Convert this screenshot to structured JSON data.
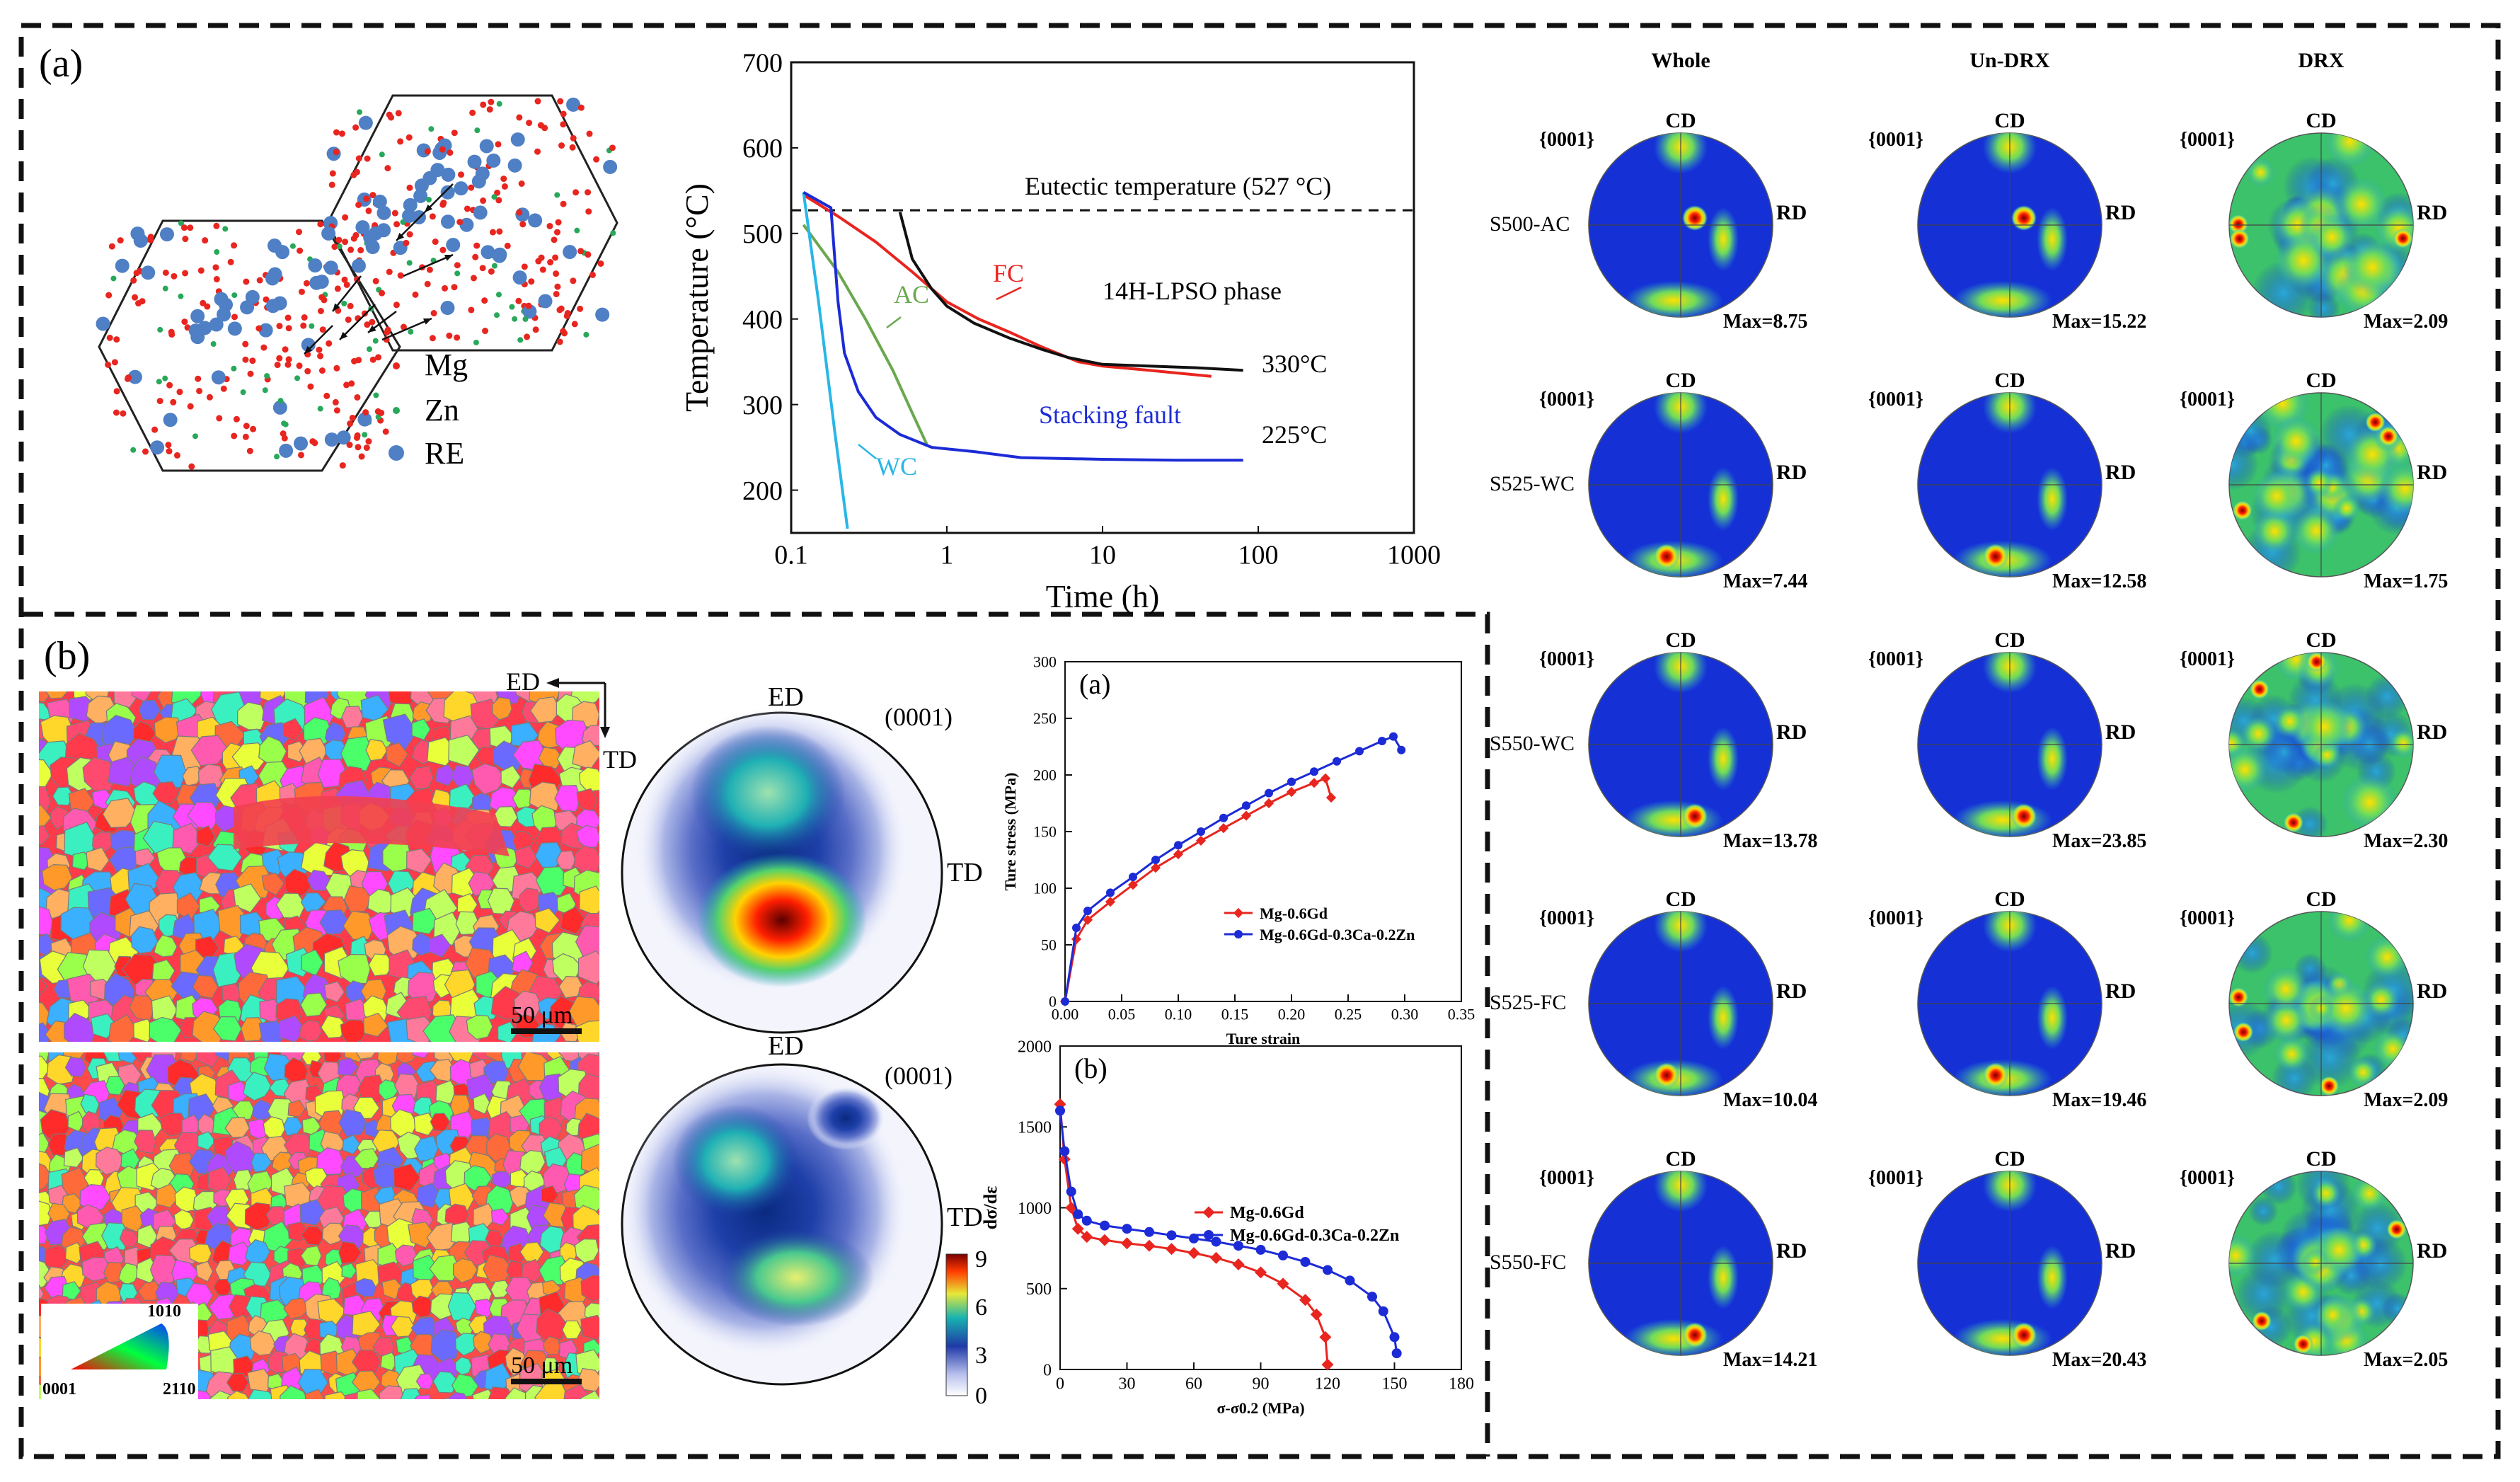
{
  "panel_a": {
    "label": "(a)",
    "legend": [
      "Mg",
      "Zn",
      "RE"
    ],
    "colors": {
      "mg": "#e8251f",
      "zn": "#27a85a",
      "re": "#4f7fc4",
      "fc": "#e8251f",
      "ac": "#6aa84f",
      "wc": "#29b6e8",
      "stack": "#1c2bd6",
      "black": "#111111"
    }
  },
  "panel_b": {
    "label": "(b)"
  },
  "chart_data": [
    {
      "type": "line",
      "title": "",
      "xlabel": "Time (h)",
      "ylabel": "Temperature (°C)",
      "xscale": "log",
      "xlim": [
        0.1,
        1000
      ],
      "ylim": [
        150,
        700
      ],
      "xticks": [
        "0.1",
        "1",
        "10",
        "100",
        "1000"
      ],
      "yticks": [
        "200",
        "300",
        "400",
        "500",
        "600",
        "700"
      ],
      "eutectic": {
        "label": "Eutectic temperature (527 °C)",
        "value": 527
      },
      "annotations": [
        "14H-LPSO phase",
        "330°C",
        "225°C"
      ],
      "series": [
        {
          "name": "FC",
          "color": "#e8251f",
          "x": [
            0.12,
            0.2,
            0.35,
            0.6,
            1.0,
            1.6,
            2.5,
            4,
            7,
            10,
            20,
            50
          ],
          "y": [
            545,
            520,
            490,
            455,
            420,
            400,
            385,
            368,
            350,
            345,
            340,
            333
          ]
        },
        {
          "name": "AC",
          "color": "#6aa84f",
          "x": [
            0.12,
            0.2,
            0.3,
            0.45,
            0.6,
            0.75
          ],
          "y": [
            510,
            455,
            400,
            340,
            290,
            252
          ]
        },
        {
          "name": "WC",
          "color": "#29b6e8",
          "x": [
            0.12,
            0.15,
            0.19,
            0.23
          ],
          "y": [
            548,
            420,
            270,
            155
          ]
        },
        {
          "name": "Stacking fault",
          "color": "#1c2bd6",
          "x": [
            0.12,
            0.18,
            0.2,
            0.22,
            0.27,
            0.35,
            0.5,
            0.8,
            1.5,
            3,
            10,
            30,
            80
          ],
          "y": [
            548,
            530,
            420,
            360,
            315,
            285,
            265,
            250,
            245,
            238,
            236,
            235,
            235
          ]
        },
        {
          "name": "330°C",
          "color": "#111111",
          "x": [
            0.5,
            0.6,
            0.8,
            1.0,
            1.5,
            2.5,
            4,
            6,
            10,
            20,
            40,
            80
          ],
          "y": [
            525,
            470,
            435,
            415,
            395,
            378,
            365,
            355,
            347,
            345,
            343,
            340
          ]
        }
      ]
    },
    {
      "type": "line",
      "title": "(a)",
      "xlabel": "Ture strain",
      "ylabel": "Ture stress (MPa)",
      "xlim": [
        0,
        0.35
      ],
      "ylim": [
        0,
        300
      ],
      "xticks": [
        "0.00",
        "0.05",
        "0.10",
        "0.15",
        "0.20",
        "0.25",
        "0.30",
        "0.35"
      ],
      "yticks": [
        "0",
        "50",
        "100",
        "150",
        "200",
        "250",
        "300"
      ],
      "series": [
        {
          "name": "Mg-0.6Gd",
          "color": "#e8251f",
          "x": [
            0,
            0.01,
            0.02,
            0.04,
            0.06,
            0.08,
            0.1,
            0.12,
            0.14,
            0.16,
            0.18,
            0.2,
            0.22,
            0.23,
            0.235
          ],
          "y": [
            0,
            55,
            72,
            88,
            103,
            118,
            130,
            142,
            153,
            164,
            175,
            185,
            193,
            197,
            180
          ]
        },
        {
          "name": "Mg-0.6Gd-0.3Ca-0.2Zn",
          "color": "#1c2bd6",
          "x": [
            0,
            0.01,
            0.02,
            0.04,
            0.06,
            0.08,
            0.1,
            0.12,
            0.14,
            0.16,
            0.18,
            0.2,
            0.22,
            0.24,
            0.26,
            0.28,
            0.29,
            0.297
          ],
          "y": [
            0,
            65,
            80,
            96,
            110,
            125,
            138,
            150,
            162,
            173,
            184,
            194,
            203,
            212,
            221,
            230,
            234,
            222
          ]
        }
      ]
    },
    {
      "type": "line",
      "title": "(b)",
      "xlabel": "σ-σ0.2 (MPa)",
      "ylabel": "dσ/dε",
      "xlim": [
        0,
        180
      ],
      "ylim": [
        0,
        2000
      ],
      "xticks": [
        "0",
        "30",
        "60",
        "90",
        "120",
        "150",
        "180"
      ],
      "yticks": [
        "0",
        "500",
        "1000",
        "1500",
        "2000"
      ],
      "series": [
        {
          "name": "Mg-0.6Gd",
          "color": "#e8251f",
          "x": [
            0,
            2,
            5,
            8,
            12,
            20,
            30,
            40,
            50,
            60,
            70,
            80,
            90,
            100,
            110,
            115,
            119,
            120
          ],
          "y": [
            1640,
            1300,
            1000,
            870,
            820,
            800,
            780,
            765,
            745,
            720,
            690,
            650,
            600,
            530,
            430,
            340,
            200,
            30
          ]
        },
        {
          "name": "Mg-0.6Gd-0.3Ca-0.2Zn",
          "color": "#1c2bd6",
          "x": [
            0,
            2,
            5,
            8,
            12,
            20,
            30,
            40,
            50,
            60,
            70,
            80,
            90,
            100,
            110,
            120,
            130,
            140,
            145,
            150,
            151
          ],
          "y": [
            1600,
            1350,
            1100,
            960,
            920,
            890,
            870,
            850,
            830,
            810,
            790,
            765,
            740,
            705,
            665,
            615,
            550,
            450,
            360,
            200,
            100
          ]
        }
      ]
    }
  ],
  "ebsd": {
    "axes_ed": "ED",
    "axes_td": "TD",
    "scale_top": "50 μm",
    "scale_bottom": "50 μm",
    "ipf_labels": [
      "1010",
      "0001",
      "2110"
    ]
  },
  "pole_b": {
    "top": {
      "ed": "ED",
      "plane": "(0001)",
      "td": "TD"
    },
    "bottom": {
      "ed": "ED",
      "plane": "(0001)",
      "td": "TD"
    },
    "colorbar_ticks": [
      "9",
      "6",
      "3",
      "0"
    ]
  },
  "pole_grid": {
    "columns": [
      "Whole",
      "Un-DRX",
      "DRX"
    ],
    "plane": "{0001}",
    "cd": "CD",
    "rd": "RD",
    "rows": [
      {
        "name": "S500-AC",
        "max": [
          "Max=8.75",
          "Max=15.22",
          "Max=2.09"
        ]
      },
      {
        "name": "S525-WC",
        "max": [
          "Max=7.44",
          "Max=12.58",
          "Max=1.75"
        ]
      },
      {
        "name": "S550-WC",
        "max": [
          "Max=13.78",
          "Max=23.85",
          "Max=2.30"
        ]
      },
      {
        "name": "S525-FC",
        "max": [
          "Max=10.04",
          "Max=19.46",
          "Max=2.09"
        ]
      },
      {
        "name": "S550-FC",
        "max": [
          "Max=14.21",
          "Max=20.43",
          "Max=2.05"
        ]
      }
    ]
  }
}
